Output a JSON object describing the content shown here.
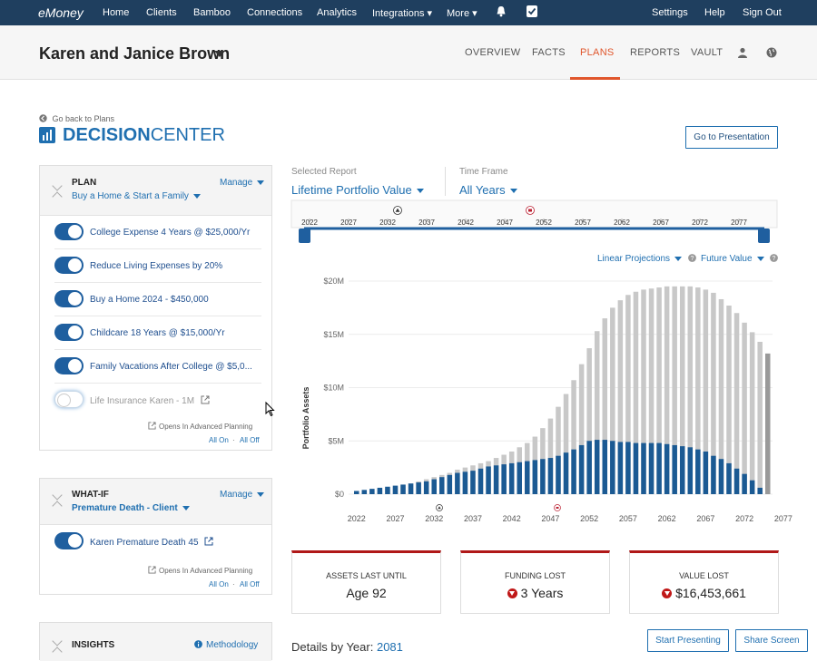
{
  "topnav": {
    "logo": "eMoney",
    "items": [
      "Home",
      "Clients",
      "Bamboo",
      "Connections",
      "Analytics",
      "Integrations ▾",
      "More ▾"
    ],
    "right_items": [
      "Settings",
      "Help",
      "Sign Out"
    ],
    "icons": [
      "bell-icon",
      "checkbox-icon"
    ]
  },
  "client": {
    "name": "Karen and Janice Brown",
    "tabs": [
      "OVERVIEW",
      "FACTS",
      "PLANS",
      "REPORTS",
      "VAULT"
    ],
    "active_tab": "PLANS",
    "icons": [
      "person-icon",
      "globe-icon"
    ]
  },
  "back_link": "Go back to Plans",
  "title": {
    "bold": "DECISION",
    "light": "CENTER"
  },
  "go_to_presentation": "Go to Presentation",
  "plan_panel": {
    "heading": "PLAN",
    "plan_name": "Buy a Home & Start a Family",
    "manage": "Manage",
    "items": [
      {
        "label": "College Expense 4 Years @ $25,000/Yr",
        "on": true
      },
      {
        "label": "Reduce Living Expenses by 20%",
        "on": true
      },
      {
        "label": "Buy a Home 2024 - $450,000",
        "on": true
      },
      {
        "label": "Childcare 18 Years @ $15,000/Yr",
        "on": true
      },
      {
        "label": "Family Vacations After College @ $5,0...",
        "on": true
      },
      {
        "label": "Life Insurance Karen - 1M",
        "on": false
      }
    ],
    "note": "Opens In Advanced Planning",
    "all_on": "All On",
    "all_off": "All Off"
  },
  "whatif_panel": {
    "heading": "WHAT-IF",
    "scenario": "Premature Death - Client",
    "manage": "Manage",
    "items": [
      {
        "label": "Karen Premature Death 45",
        "on": true
      }
    ],
    "note": "Opens In Advanced Planning",
    "all_on": "All On",
    "all_off": "All Off"
  },
  "insights_panel": {
    "heading": "INSIGHTS",
    "methodology": "Methodology"
  },
  "report": {
    "selected_label": "Selected Report",
    "selected_value": "Lifetime Portfolio Value",
    "timeframe_label": "Time Frame",
    "timeframe_value": "All Years",
    "timeline_years": [
      "2022",
      "2027",
      "2032",
      "2037",
      "2042",
      "2047",
      "2052",
      "2057",
      "2062",
      "2067",
      "2072",
      "2077"
    ],
    "linear_projections": "Linear Projections",
    "future_value": "Future Value"
  },
  "chart_data": {
    "type": "bar",
    "ylabel": "Portfolio Assets",
    "y_ticks": [
      "$0",
      "$5M",
      "$10M",
      "$15M",
      "$20M"
    ],
    "ylim": [
      0,
      20
    ],
    "x_tick_labels": [
      "2022",
      "2027",
      "2032",
      "2037",
      "2042",
      "2047",
      "2052",
      "2057",
      "2062",
      "2067",
      "2072",
      "2077"
    ],
    "x_start": 2022,
    "colors": {
      "plan": "#1b5a93",
      "baseline": "#c8c8c8",
      "final": "#999999"
    },
    "series": [
      {
        "name": "baseline",
        "values": [
          0.1,
          0.2,
          0.3,
          0.4,
          0.5,
          0.7,
          0.8,
          1.0,
          1.2,
          1.4,
          1.6,
          1.8,
          2.0,
          2.3,
          2.5,
          2.7,
          2.9,
          3.1,
          3.4,
          3.7,
          4.0,
          4.4,
          4.8,
          5.4,
          6.2,
          7.1,
          8.2,
          9.4,
          10.7,
          12.2,
          13.7,
          15.3,
          16.5,
          17.5,
          18.2,
          18.7,
          19.0,
          19.2,
          19.3,
          19.4,
          19.5,
          19.5,
          19.5,
          19.5,
          19.4,
          19.2,
          18.9,
          18.3,
          17.7,
          17.0,
          16.1,
          15.2,
          14.3,
          13.2
        ]
      },
      {
        "name": "plan",
        "values": [
          0.3,
          0.4,
          0.5,
          0.6,
          0.7,
          0.8,
          0.9,
          1.0,
          1.1,
          1.2,
          1.4,
          1.6,
          1.8,
          2.0,
          2.1,
          2.2,
          2.4,
          2.6,
          2.7,
          2.8,
          2.9,
          3.0,
          3.1,
          3.2,
          3.3,
          3.4,
          3.6,
          3.9,
          4.2,
          4.6,
          5.0,
          5.1,
          5.1,
          5.0,
          4.9,
          4.9,
          4.8,
          4.8,
          4.8,
          4.8,
          4.7,
          4.6,
          4.5,
          4.4,
          4.2,
          4.0,
          3.6,
          3.3,
          2.9,
          2.4,
          1.9,
          1.3,
          0.6,
          0
        ]
      }
    ]
  },
  "metrics": [
    {
      "label": "ASSETS LAST UNTIL",
      "value": "Age 92",
      "down": false
    },
    {
      "label": "FUNDING LOST",
      "value": "3 Years",
      "down": true
    },
    {
      "label": "VALUE LOST",
      "value": "$16,453,661",
      "down": true
    }
  ],
  "details": {
    "label": "Details by Year:",
    "year": "2081"
  },
  "footer_buttons": {
    "start": "Start Presenting",
    "share": "Share Screen"
  }
}
